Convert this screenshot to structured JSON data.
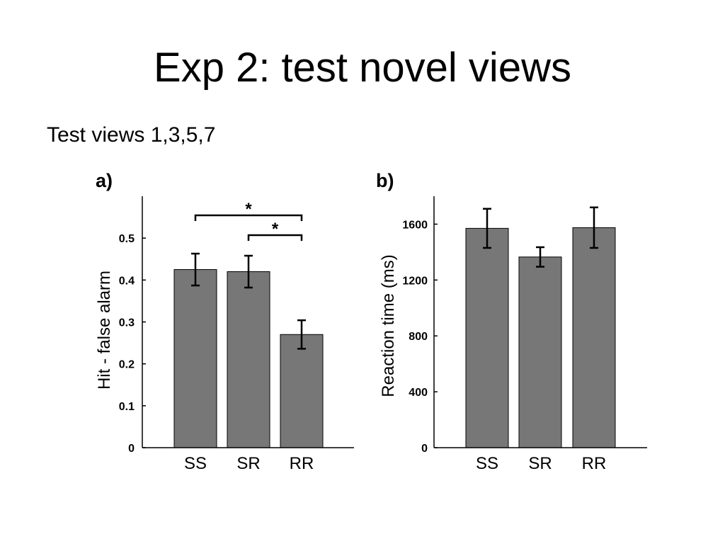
{
  "slide": {
    "title": "Exp 2: test novel views",
    "subtitle": "Test views 1,3,5,7"
  },
  "colors": {
    "bar": "#777777",
    "axis": "#000000"
  },
  "chart_data": [
    {
      "type": "bar",
      "panel_label": "a)",
      "categories": [
        "SS",
        "SR",
        "RR"
      ],
      "values": [
        0.425,
        0.42,
        0.27
      ],
      "error": [
        0.038,
        0.038,
        0.034
      ],
      "ylabel": "Hit - false alarm",
      "ylim": [
        0,
        0.6
      ],
      "yticks": [
        0,
        0.1,
        0.2,
        0.3,
        0.4,
        0.5
      ],
      "ytick_labels": [
        "0",
        "0.1",
        "0.2",
        "0.3",
        "0.4",
        "0.5"
      ],
      "significance": [
        {
          "from": "SS",
          "to": "RR",
          "label": "*"
        },
        {
          "from": "SR",
          "to": "RR",
          "label": "*"
        }
      ],
      "grid": false
    },
    {
      "type": "bar",
      "panel_label": "b)",
      "categories": [
        "SS",
        "SR",
        "RR"
      ],
      "values": [
        1570,
        1365,
        1575
      ],
      "error": [
        140,
        70,
        145
      ],
      "ylabel": "Reaction time (ms)",
      "ylim": [
        0,
        1800
      ],
      "yticks": [
        0,
        400,
        800,
        1200,
        1600
      ],
      "ytick_labels": [
        "0",
        "400",
        "800",
        "1200",
        "1600"
      ],
      "grid": false
    }
  ]
}
